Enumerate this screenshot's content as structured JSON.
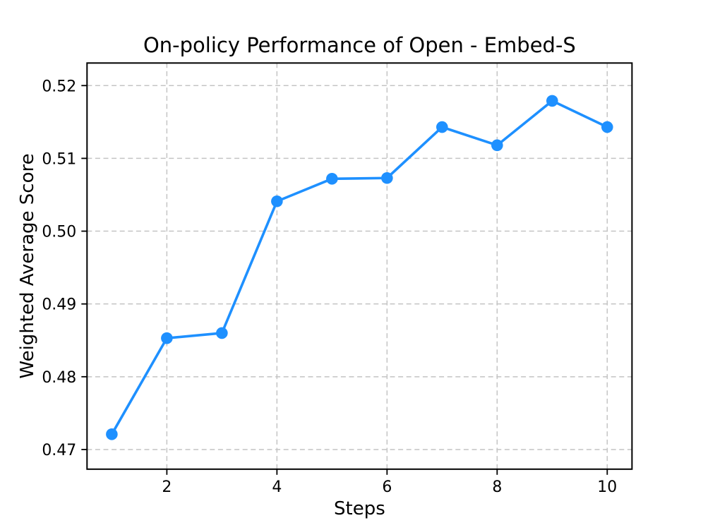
{
  "chart_data": {
    "type": "line",
    "title": "On-policy Performance of Open - Embed-S",
    "xlabel": "Steps",
    "ylabel": "Weighted Average Score",
    "x": [
      1,
      2,
      3,
      4,
      5,
      6,
      7,
      8,
      9,
      10
    ],
    "series": [
      {
        "name": "weighted-average-score",
        "values": [
          0.4721,
          0.4853,
          0.486,
          0.5041,
          0.5072,
          0.5073,
          0.5143,
          0.5118,
          0.5179,
          0.5143
        ],
        "color": "#1E90FF",
        "marker": "circle"
      }
    ],
    "xlim": [
      0.55,
      10.45
    ],
    "ylim": [
      0.4673,
      0.5231
    ],
    "xticks": [
      2,
      4,
      6,
      8,
      10
    ],
    "xtick_labels": [
      "2",
      "4",
      "6",
      "8",
      "10"
    ],
    "yticks": [
      0.47,
      0.48,
      0.49,
      0.5,
      0.51,
      0.52
    ],
    "ytick_labels": [
      "0.47",
      "0.48",
      "0.49",
      "0.50",
      "0.51",
      "0.52"
    ],
    "grid": true,
    "grid_style": "dashed",
    "legend_position": "none",
    "colors": {
      "line": "#1E90FF",
      "grid": "#c4c4c4",
      "spine": "#000000",
      "text": "#000000",
      "background": "#ffffff"
    }
  }
}
